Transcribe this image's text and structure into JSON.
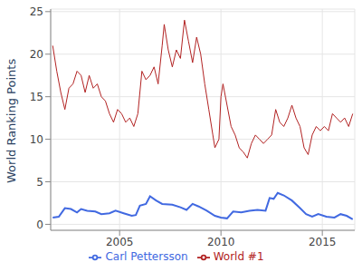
{
  "chart_data": {
    "type": "line",
    "y_label": "World Ranking Points",
    "xlim": [
      2001.6,
      2016.6
    ],
    "xticks": [
      2005,
      2010,
      2015
    ],
    "ylim": [
      -0.7,
      25.3
    ],
    "yticks": [
      0,
      5,
      10,
      15,
      20,
      25
    ],
    "grid": true,
    "legend": "bottom",
    "series": [
      {
        "name": "Carl Pettersson",
        "color": "#4169e1",
        "x": [
          2001.7,
          2002.0,
          2002.3,
          2002.6,
          2002.9,
          2003.1,
          2003.4,
          2003.8,
          2004.1,
          2004.5,
          2004.8,
          2005.2,
          2005.6,
          2005.8,
          2006.0,
          2006.3,
          2006.5,
          2006.8,
          2007.1,
          2007.6,
          2008.0,
          2008.3,
          2008.6,
          2008.9,
          2009.3,
          2009.7,
          2010.0,
          2010.3,
          2010.6,
          2011.0,
          2011.4,
          2011.8,
          2012.2,
          2012.4,
          2012.6,
          2012.8,
          2013.1,
          2013.5,
          2013.9,
          2014.2,
          2014.5,
          2014.8,
          2015.2,
          2015.6,
          2015.9,
          2016.2,
          2016.5
        ],
        "values": [
          0.8,
          0.9,
          1.9,
          1.8,
          1.4,
          1.8,
          1.6,
          1.5,
          1.2,
          1.3,
          1.6,
          1.3,
          1.0,
          1.1,
          2.2,
          2.4,
          3.3,
          2.8,
          2.4,
          2.3,
          2.0,
          1.7,
          2.4,
          2.1,
          1.6,
          1.0,
          0.8,
          0.7,
          1.5,
          1.4,
          1.6,
          1.7,
          1.6,
          3.1,
          3.0,
          3.7,
          3.4,
          2.8,
          1.9,
          1.2,
          0.9,
          1.2,
          0.9,
          0.8,
          1.2,
          1.0,
          0.6
        ]
      },
      {
        "name": "World #1",
        "color": "#b22222",
        "x": [
          2001.7,
          2001.9,
          2002.1,
          2002.3,
          2002.5,
          2002.7,
          2002.9,
          2003.1,
          2003.3,
          2003.5,
          2003.7,
          2003.9,
          2004.1,
          2004.3,
          2004.5,
          2004.7,
          2004.9,
          2005.1,
          2005.3,
          2005.5,
          2005.7,
          2005.9,
          2006.1,
          2006.3,
          2006.5,
          2006.7,
          2006.9,
          2007.1,
          2007.2,
          2007.4,
          2007.6,
          2007.8,
          2008.0,
          2008.2,
          2008.4,
          2008.6,
          2008.8,
          2009.0,
          2009.2,
          2009.4,
          2009.6,
          2009.7,
          2009.9,
          2010.0,
          2010.1,
          2010.3,
          2010.5,
          2010.7,
          2010.9,
          2011.1,
          2011.3,
          2011.5,
          2011.7,
          2011.9,
          2012.1,
          2012.3,
          2012.5,
          2012.7,
          2012.9,
          2013.1,
          2013.3,
          2013.5,
          2013.7,
          2013.9,
          2014.1,
          2014.3,
          2014.5,
          2014.7,
          2014.9,
          2015.1,
          2015.3,
          2015.5,
          2015.7,
          2015.9,
          2016.1,
          2016.3,
          2016.5
        ],
        "values": [
          21,
          18,
          15.5,
          13.5,
          16,
          16.5,
          18,
          17.5,
          15.5,
          17.5,
          16,
          16.5,
          15,
          14.5,
          13,
          12,
          13.5,
          13,
          12,
          12.5,
          11.5,
          13,
          18,
          17,
          17.5,
          18.5,
          16.5,
          21,
          23.5,
          20.5,
          18.5,
          20.5,
          19.5,
          24,
          21.5,
          19,
          22,
          20,
          16.5,
          13.5,
          10.5,
          9,
          10,
          15,
          16.5,
          14,
          11.5,
          10.5,
          9,
          8.5,
          7.8,
          9.5,
          10.5,
          10,
          9.5,
          10,
          10.5,
          13.5,
          12,
          11.5,
          12.5,
          14,
          12.5,
          11.5,
          9,
          8.2,
          10.5,
          11.5,
          11,
          11.5,
          11,
          13,
          12.5,
          12,
          12.5,
          11.5,
          13
        ]
      }
    ]
  }
}
